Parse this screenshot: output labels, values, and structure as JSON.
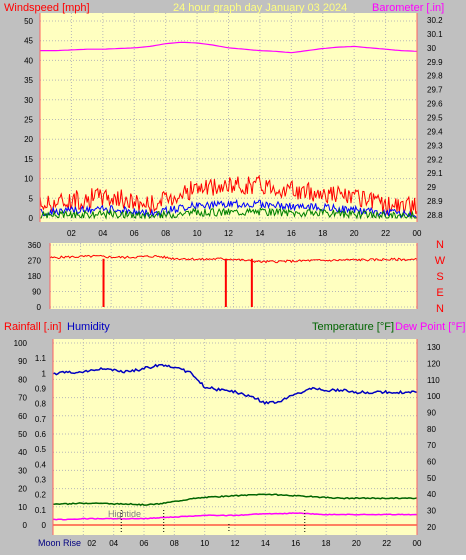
{
  "header": {
    "left": "Windspeed [mph]",
    "center": "24 hour graph day   January 03 2024",
    "right": "Barometer [.in]"
  },
  "dir_labels": [
    "N",
    "W",
    "S",
    "E",
    "N"
  ],
  "lower_header": {
    "rain": "Rainfall [.in]",
    "humidity": "Humidity",
    "temp": "Temperature [°F]",
    "dew": "Dew Point [°F]"
  },
  "lower_footer": {
    "moon": "Moon Rise",
    "tide": "Hightide"
  },
  "colors": {
    "wind_gust": "#ff0000",
    "wind_avg": "#0000ff",
    "wind_min": "#008000",
    "barometer": "#ff00ff",
    "direction": "#ff0000",
    "humidity": "#0000c0",
    "temperature": "#006400",
    "dewpoint": "#ff00ff",
    "rain": "#ff0000",
    "plot_bg": "#ffffc0",
    "frame_bg": "#c0c0c0"
  },
  "chart_data": [
    {
      "type": "line",
      "name": "wind",
      "x_ticks": [
        "02",
        "04",
        "06",
        "08",
        "10",
        "12",
        "14",
        "16",
        "18",
        "20",
        "22",
        "00"
      ],
      "y_ticks_left": [
        "50",
        "45",
        "40",
        "35",
        "30",
        "25",
        "20",
        "15",
        "10",
        "5",
        "0"
      ],
      "y_ticks_right": [
        "30.2",
        "30.1",
        "30",
        "29.9",
        "29.8",
        "29.7",
        "29.6",
        "29.5",
        "29.4",
        "29.3",
        "29.2",
        "29.1",
        "29",
        "28.9",
        "28.8"
      ],
      "ylim_left": [
        0,
        50
      ],
      "ylim_right": [
        28.75,
        30.25
      ],
      "xlim_hours": [
        0,
        24
      ],
      "series": [
        {
          "name": "Windspeed",
          "x": [
            0,
            1,
            2,
            3,
            4,
            5,
            6,
            7,
            8,
            9,
            10,
            11,
            12,
            13,
            14,
            15,
            16,
            17,
            18,
            19,
            20,
            21,
            22,
            23,
            24
          ],
          "y": [
            3,
            3.5,
            4,
            4.5,
            5,
            4.5,
            3.5,
            3,
            4,
            6,
            7,
            7,
            7.5,
            8,
            8,
            7.5,
            6.5,
            6,
            6,
            5.5,
            4.5,
            3.5,
            3,
            2.5,
            2.5
          ]
        },
        {
          "name": "Barometer",
          "x": [
            0,
            1,
            2,
            3,
            4,
            5,
            6,
            7,
            8,
            9,
            10,
            11,
            12,
            13,
            14,
            15,
            16,
            17,
            18,
            19,
            20,
            21,
            22,
            23,
            24
          ],
          "y": [
            29.98,
            29.98,
            29.985,
            29.99,
            29.99,
            29.995,
            30.0,
            30.01,
            30.03,
            30.04,
            30.035,
            30.02,
            30.0,
            29.99,
            29.98,
            29.975,
            29.965,
            29.98,
            29.995,
            30.005,
            30.01,
            30.0,
            29.99,
            29.98,
            29.975
          ]
        }
      ]
    },
    {
      "type": "line",
      "name": "wind direction",
      "y_ticks": [
        "360",
        "270",
        "180",
        "90",
        "0"
      ],
      "ylim": [
        0,
        360
      ],
      "xlim_hours": [
        0,
        24
      ],
      "series": [
        {
          "name": "Direction",
          "x": [
            0,
            1,
            2,
            3,
            4,
            5,
            6,
            7,
            8,
            9,
            10,
            11,
            12,
            13,
            14,
            15,
            16,
            17,
            18,
            19,
            20,
            21,
            22,
            23,
            24
          ],
          "y": [
            285,
            290,
            292,
            295,
            290,
            288,
            292,
            295,
            282,
            280,
            276,
            280,
            278,
            268,
            262,
            265,
            266,
            270,
            270,
            272,
            274,
            274,
            276,
            276,
            275
          ]
        }
      ]
    },
    {
      "type": "line",
      "name": "humidity temperature",
      "y_ticks_rain": [
        "1.1",
        "1",
        "0.9",
        "0.8",
        "0.7",
        "0.6",
        "0.5",
        "0.4",
        "0.3",
        "0.2",
        "0.1",
        "0"
      ],
      "y_ticks_humidity": [
        "100",
        "90",
        "80",
        "70",
        "60",
        "50",
        "40",
        "30",
        "20",
        "10",
        "0"
      ],
      "y_ticks_temp": [
        "130",
        "120",
        "110",
        "100",
        "90",
        "80",
        "70",
        "60",
        "50",
        "40",
        "30",
        "20"
      ],
      "x_ticks": [
        "02",
        "04",
        "06",
        "08",
        "10",
        "12",
        "14",
        "16",
        "18",
        "20",
        "22",
        "00"
      ],
      "ylim_humidity": [
        0,
        100
      ],
      "ylim_temp": [
        15,
        135
      ],
      "ylim_rain": [
        0,
        1.2
      ],
      "xlim_hours": [
        0,
        24
      ],
      "series": [
        {
          "name": "Humidity",
          "x": [
            0,
            1,
            2,
            3,
            4,
            5,
            6,
            7,
            8,
            9,
            10,
            11,
            12,
            13,
            14,
            15,
            16,
            17,
            18,
            19,
            20,
            21,
            22,
            23,
            24
          ],
          "y": [
            83,
            84,
            84,
            86,
            85,
            84,
            86,
            88,
            87,
            84,
            76,
            74,
            73,
            71,
            67,
            68,
            72,
            75,
            74,
            74,
            73,
            73,
            73,
            73,
            73
          ]
        },
        {
          "name": "Temperature",
          "x": [
            0,
            1,
            2,
            3,
            4,
            5,
            6,
            7,
            8,
            9,
            10,
            11,
            12,
            13,
            14,
            15,
            16,
            17,
            18,
            19,
            20,
            21,
            22,
            23,
            24
          ],
          "y": [
            34,
            34,
            34.5,
            34.5,
            34,
            34,
            33.5,
            34,
            35.5,
            37,
            38,
            38.5,
            39,
            39.5,
            40,
            39.5,
            39,
            38.5,
            38,
            37.5,
            37.5,
            37.5,
            37.5,
            37.5,
            37.5
          ]
        },
        {
          "name": "Dew Point",
          "x": [
            0,
            1,
            2,
            3,
            4,
            5,
            6,
            7,
            8,
            9,
            10,
            11,
            12,
            13,
            14,
            15,
            16,
            17,
            18,
            19,
            20,
            21,
            22,
            23,
            24
          ],
          "y": [
            24.5,
            24.5,
            25,
            25,
            25,
            25,
            25,
            25.5,
            26,
            26.5,
            27,
            27,
            27,
            27.5,
            28,
            28,
            28.5,
            28,
            27.5,
            27.5,
            27.5,
            27.5,
            27.5,
            27.5,
            27.5
          ]
        },
        {
          "name": "Rainfall",
          "x": [
            0,
            24
          ],
          "y": [
            0,
            0
          ]
        }
      ]
    }
  ]
}
